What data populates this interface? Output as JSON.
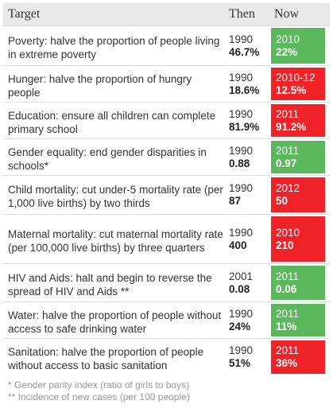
{
  "header": {
    "target": "Target",
    "then": "Then",
    "now": "Now"
  },
  "rows": [
    {
      "target": "Poverty: halve the proportion of people living in extreme poverty",
      "then_year": "1990",
      "then_value": "46.7%",
      "now_year": "2010",
      "now_value": "22%",
      "status": "good"
    },
    {
      "target": "Hunger: halve the proportion of hungry people",
      "then_year": "1990",
      "then_value": "18.6%",
      "now_year": "2010-12",
      "now_value": "12.5%",
      "status": "bad"
    },
    {
      "target": "Education: ensure all children can complete primary school",
      "then_year": "1990",
      "then_value": "81.9%",
      "now_year": "2011",
      "now_value": "91.2%",
      "status": "bad"
    },
    {
      "target": "Gender equality: end gender disparities in schools*",
      "then_year": "1990",
      "then_value": "0.88",
      "now_year": "2011",
      "now_value": "0.97",
      "status": "good"
    },
    {
      "target": "Child mortality: cut under-5 mortality rate (per 1,000 live births) by two thirds",
      "then_year": "1990",
      "then_value": "87",
      "now_year": "2012",
      "now_value": "50",
      "status": "bad"
    },
    {
      "target": "Maternal mortality: cut maternal mortality rate (per 100,000 live births) by three quarters",
      "then_year": "1990",
      "then_value": "400",
      "now_year": "2010",
      "now_value": "210",
      "status": "bad"
    },
    {
      "target": "HIV and Aids: halt and begin to reverse the spread of HIV and Aids **",
      "then_year": "2001",
      "then_value": "0.08",
      "now_year": "2011",
      "now_value": "0.06",
      "status": "good"
    },
    {
      "target": "Water: halve the proportion of people without access to safe drinking water",
      "then_year": "1990",
      "then_value": "24%",
      "now_year": "2011",
      "now_value": "11%",
      "status": "good"
    },
    {
      "target": "Sanitation: halve the proportion of people without access to basic sanitation",
      "then_year": "1990",
      "then_value": "51%",
      "now_year": "2011",
      "now_value": "36%",
      "status": "bad"
    }
  ],
  "notes": [
    "* Gender parity index (ratio of girls to boys)",
    "** Incidence of new cases (per 100 people)"
  ],
  "colors": {
    "good": "#5cb85c",
    "bad": "#ee2227",
    "header_bg": "#e9e9e9"
  }
}
